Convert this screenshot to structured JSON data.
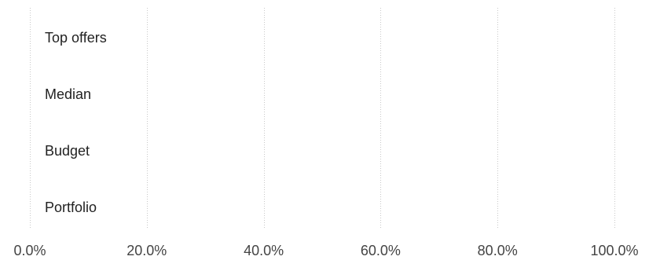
{
  "chart_data": {
    "type": "bar",
    "orientation": "horizontal",
    "categories": [
      "Top offers",
      "Median",
      "Budget",
      "Portfolio"
    ],
    "values": [
      0,
      0,
      0,
      0
    ],
    "xlim": [
      0,
      100
    ],
    "x_ticks": [
      0,
      20,
      40,
      60,
      80,
      100
    ],
    "x_tick_labels": [
      "0.0%",
      "20.0%",
      "40.0%",
      "60.0%",
      "80.0%",
      "100.0%"
    ],
    "grid": true,
    "legend": "none",
    "colors": {
      "grid": "#c8c8c8",
      "label": "#222222",
      "tick": "#444444"
    }
  }
}
